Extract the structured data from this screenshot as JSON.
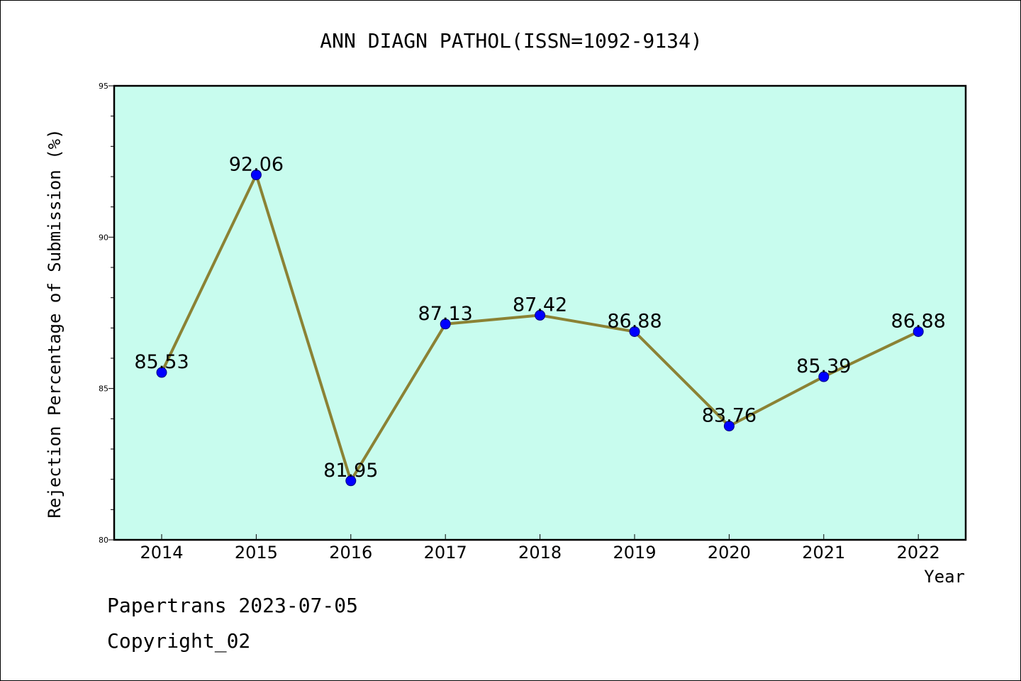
{
  "chart_data": {
    "type": "line",
    "title": "ANN DIAGN PATHOL(ISSN=1092-9134)",
    "xlabel": "Year",
    "ylabel": "Rejection Percentage of Submission (%)",
    "x": [
      "2014",
      "2015",
      "2016",
      "2017",
      "2018",
      "2019",
      "2020",
      "2021",
      "2022"
    ],
    "series": [
      {
        "values": [
          85.53,
          92.06,
          81.95,
          87.13,
          87.42,
          86.88,
          83.76,
          85.39,
          86.88
        ],
        "data_labels": [
          "85.53",
          "92.06",
          "81.95",
          "87.13",
          "87.42",
          "86.88",
          "83.76",
          "85.39",
          "86.88"
        ]
      }
    ],
    "ylim": [
      80,
      95
    ],
    "yticks": [
      "80",
      "85",
      "90",
      "95"
    ],
    "grid": false,
    "legend": "none",
    "colors": {
      "plot_background": "#c8fcee",
      "line": "#8b8234",
      "marker": "#0000ff",
      "frame": "#000000"
    }
  },
  "footer": {
    "line1": "Papertrans 2023-07-05",
    "line2": "Copyright_02"
  }
}
